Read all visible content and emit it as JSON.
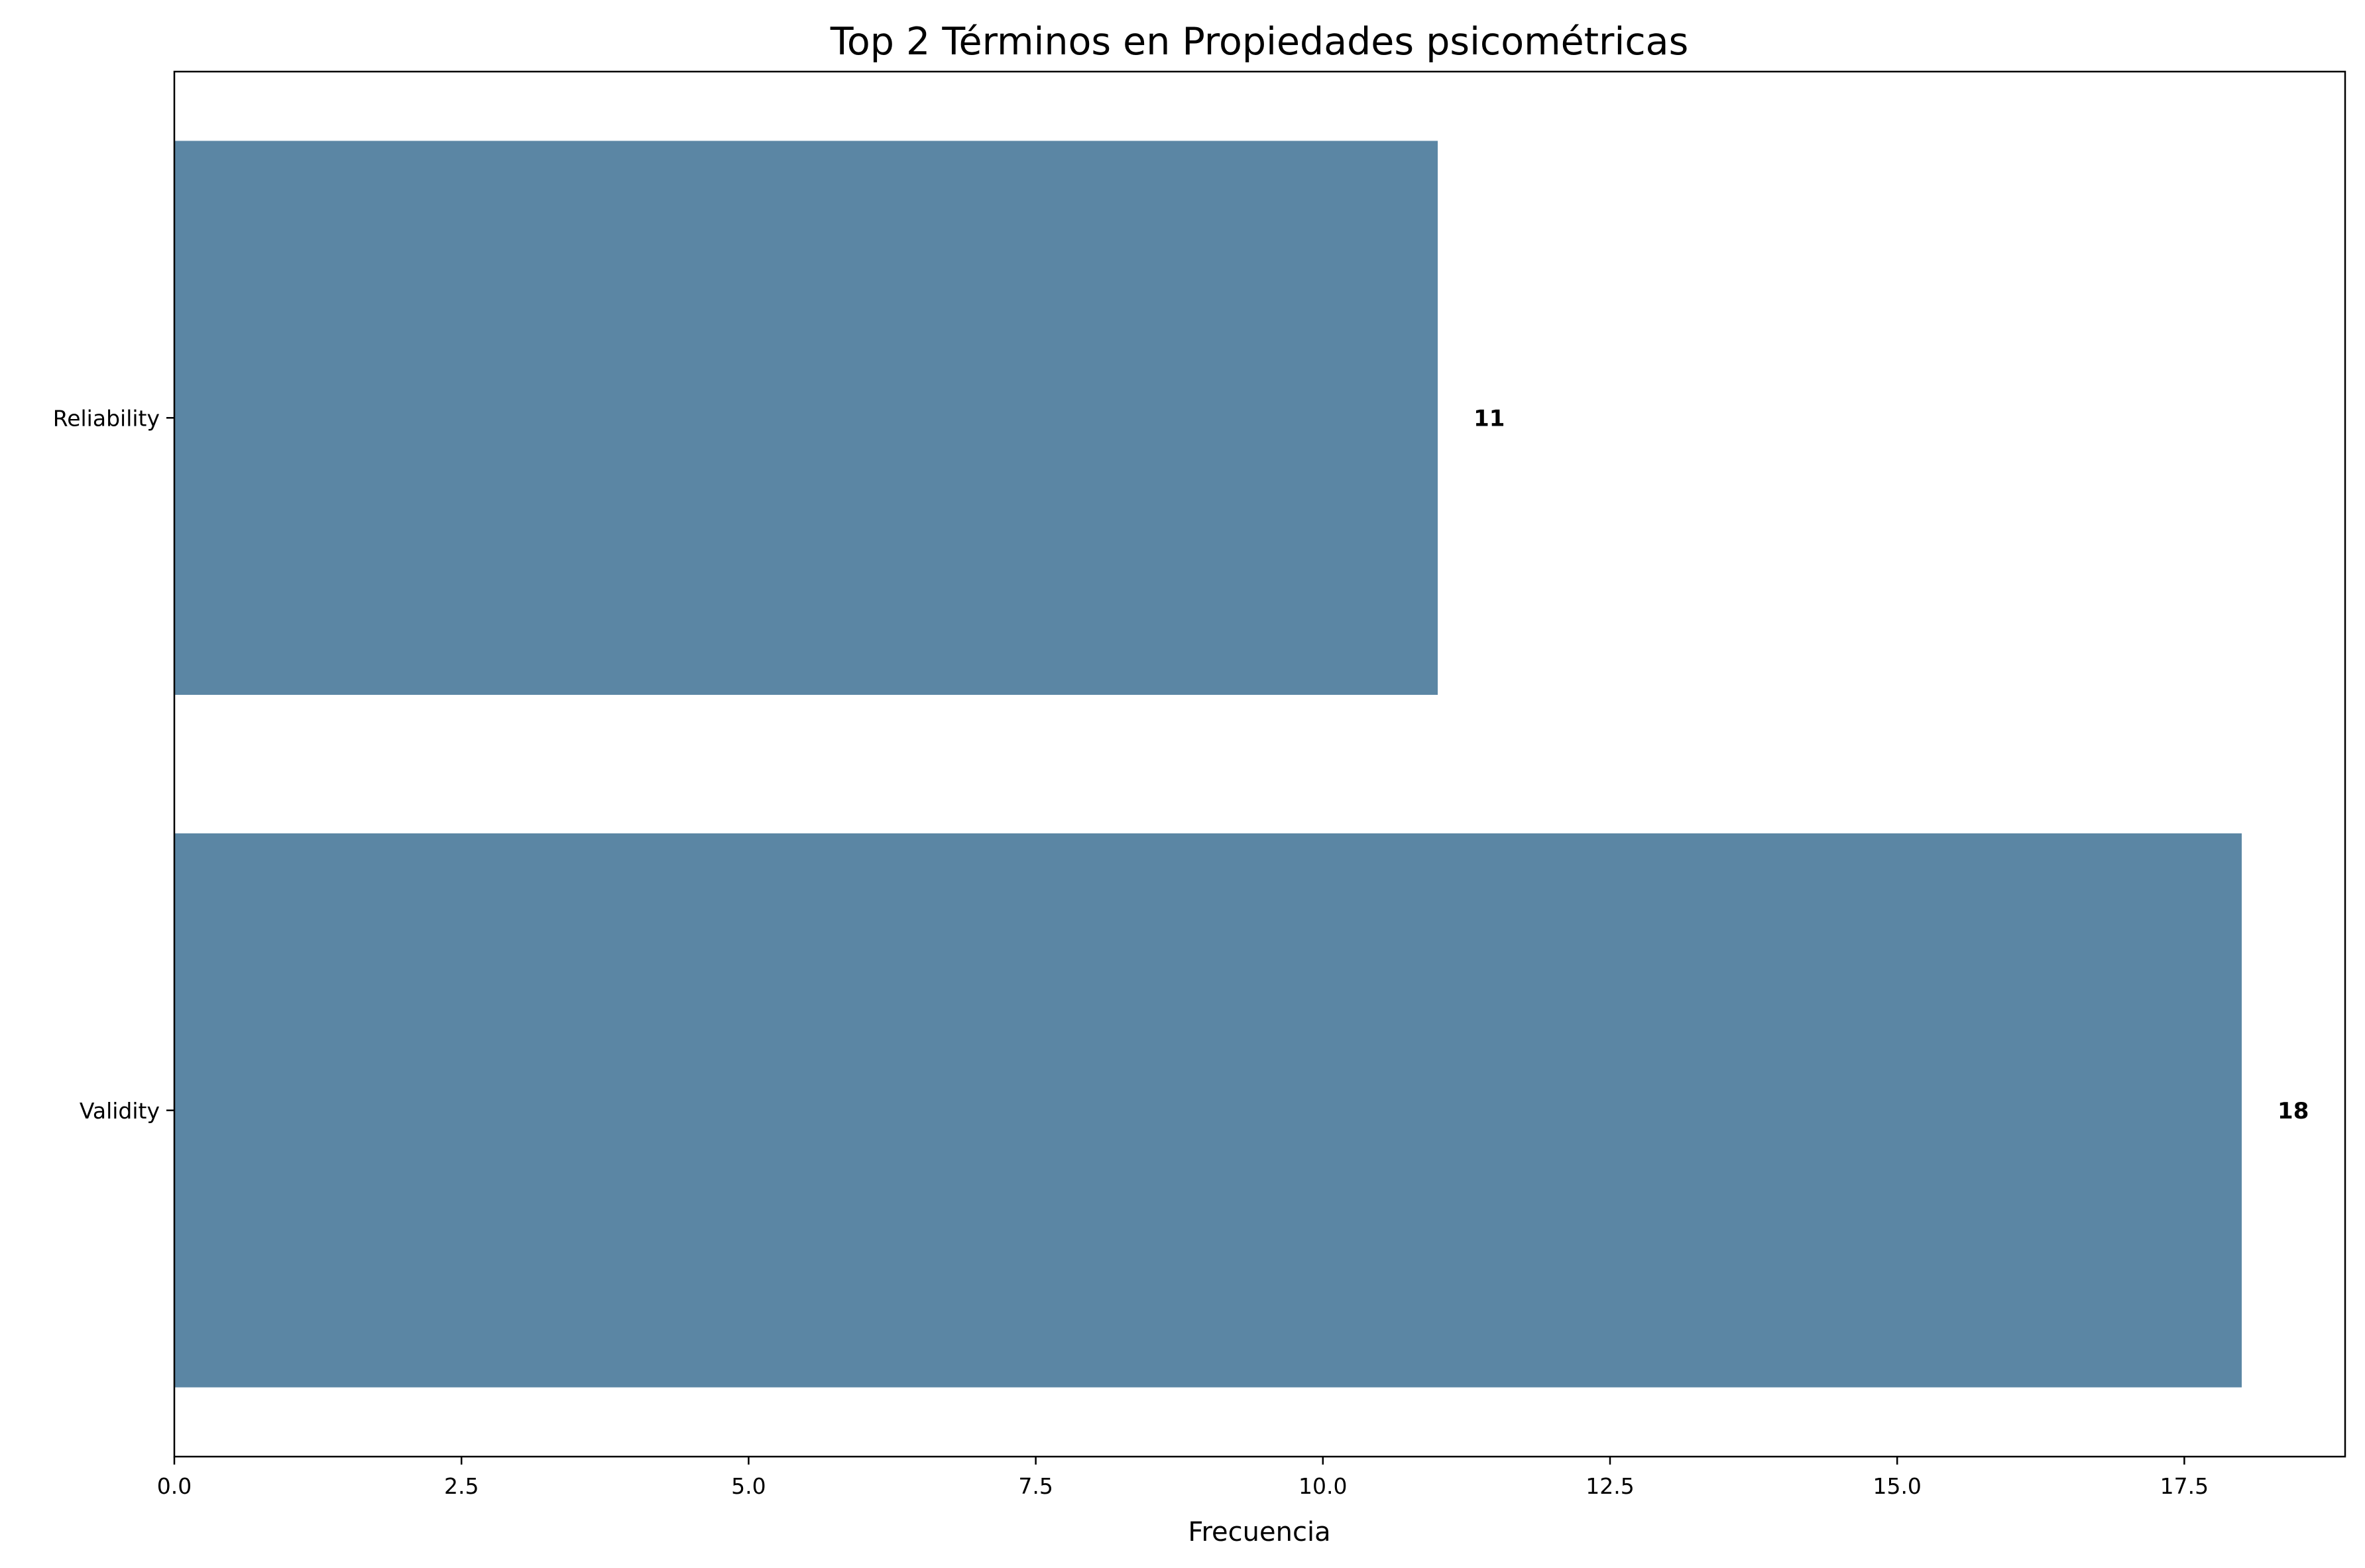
{
  "chart_data": {
    "type": "bar",
    "orientation": "horizontal",
    "title": "Top 2 Términos en Propiedades psicométricas",
    "xlabel": "Frecuencia",
    "ylabel": "",
    "categories": [
      "Reliability",
      "Validity"
    ],
    "values": [
      11,
      18
    ],
    "data_labels": [
      "11",
      "18"
    ],
    "xlim": [
      0,
      18.9
    ],
    "xticks": [
      0,
      2.5,
      5,
      7.5,
      10,
      12.5,
      15,
      17.5
    ],
    "xtick_labels": [
      "0.0",
      "2.5",
      "5.0",
      "7.5",
      "10.0",
      "12.5",
      "15.0",
      "17.5"
    ],
    "grid": false,
    "legend": "none",
    "bar_color": "#5b86a4"
  }
}
